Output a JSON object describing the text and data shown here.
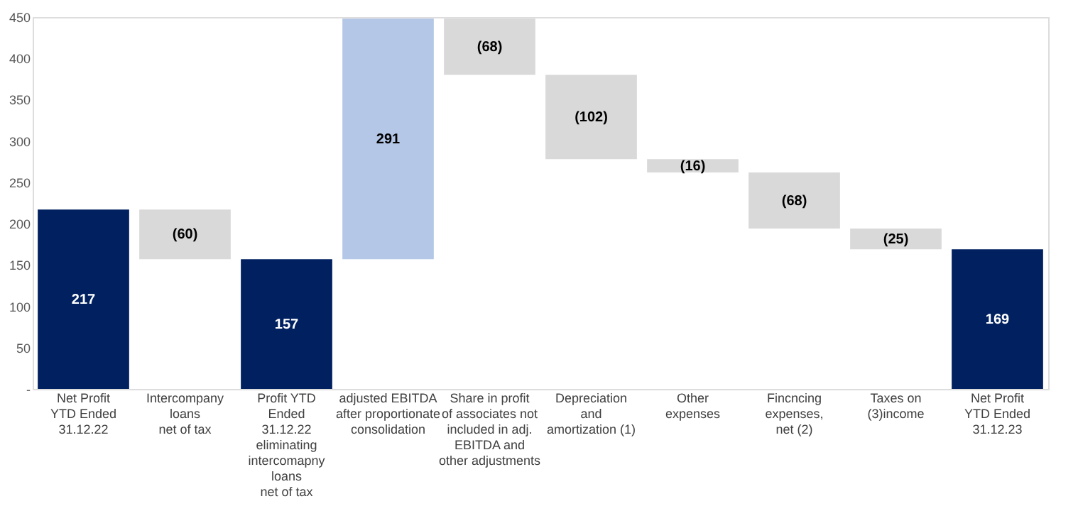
{
  "chart_data": {
    "type": "bar",
    "categories": [
      "Net Profit\nYTD Ended\n31.12.22",
      "Intercompany\nloans\nnet of tax",
      "Profit YTD\nEnded\n31.12.22\neliminating\nintercomapny\nloans\nnet of tax",
      "adjusted EBITDA\nafter proportionate\nconsolidation",
      "Share in profit\nof associates not\nincluded in adj.\nEBITDA and\nother adjustments",
      "Depreciation\nand\namortization (1)",
      "Other\nexpenses",
      "Fincncing\nexpenses,\nnet (2)",
      "Taxes on\n(3)income",
      "Net Profit\nYTD Ended\n31.12.23"
    ],
    "values": [
      217,
      -60,
      157,
      291,
      -68,
      -102,
      -16,
      -68,
      -25,
      169
    ],
    "base": [
      0,
      217,
      0,
      157,
      448,
      380,
      278,
      262,
      194,
      0
    ],
    "colors": [
      "#002060",
      "#d9d9d9",
      "#002060",
      "#b4c7e7",
      "#d9d9d9",
      "#d9d9d9",
      "#d9d9d9",
      "#d9d9d9",
      "#d9d9d9",
      "#002060"
    ],
    "value_labels": [
      "217",
      "(60)",
      "157",
      "291",
      "(68)",
      "(102)",
      "(16)",
      "(68)",
      "(25)",
      "169"
    ],
    "ylim": [
      0,
      450
    ],
    "yticks": [
      {
        "value": 0,
        "label": "-"
      },
      50,
      100,
      150,
      200,
      250,
      300,
      350,
      400,
      450
    ],
    "grid": false
  }
}
